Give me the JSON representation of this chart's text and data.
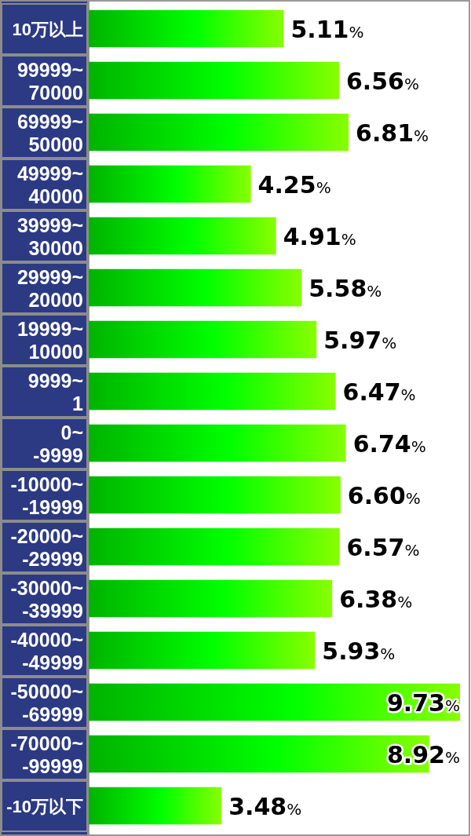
{
  "chart_data": {
    "type": "bar",
    "orientation": "horizontal",
    "categories": [
      "10万以上",
      "99999~70000",
      "69999~50000",
      "49999~40000",
      "39999~30000",
      "29999~20000",
      "19999~10000",
      "9999~1",
      "0~-9999",
      "-10000~-19999",
      "-20000~-29999",
      "-30000~-39999",
      "-40000~-49999",
      "-50000~-69999",
      "-70000~-99999",
      "-10万以下"
    ],
    "values": [
      5.11,
      6.56,
      6.81,
      4.25,
      4.91,
      5.58,
      5.97,
      6.47,
      6.74,
      6.6,
      6.57,
      6.38,
      5.93,
      9.73,
      8.92,
      3.48
    ],
    "value_labels": [
      "5.11%",
      "6.56%",
      "6.81%",
      "4.25%",
      "4.91%",
      "5.58%",
      "5.97%",
      "6.47%",
      "6.74%",
      "6.60%",
      "6.57%",
      "6.38%",
      "5.93%",
      "9.73%",
      "8.92%",
      "3.48%"
    ],
    "color": "#00ff00"
  }
}
